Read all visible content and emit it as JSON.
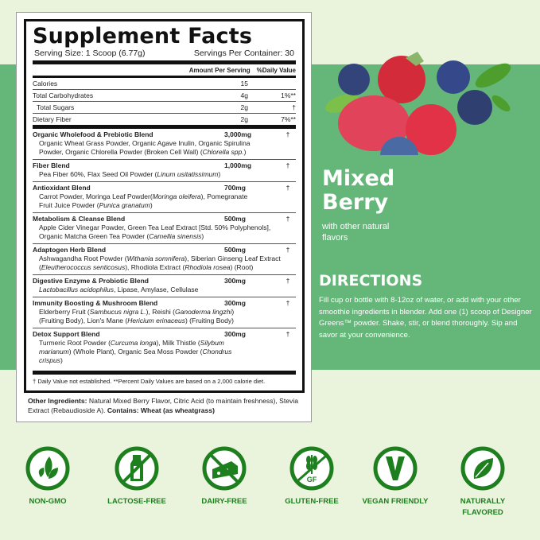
{
  "label": {
    "title": "Supplement Facts",
    "serving_size": "Serving Size: 1 Scoop (6.77g)",
    "servings_per_container": "Servings Per Container: 30",
    "col_amount": "Amount Per Serving",
    "col_dv": "%Daily Value",
    "nutrients": [
      {
        "name": "Calories",
        "amount": "15",
        "dv": ""
      },
      {
        "name": "Total Carbohydrates",
        "amount": "4g",
        "dv": "1%**"
      },
      {
        "name": "Total Sugars",
        "amount": "2g",
        "dv": "†"
      },
      {
        "name": "Dietary Fiber",
        "amount": "2g",
        "dv": "7%**"
      }
    ],
    "blends": [
      {
        "name": "Organic Wholefood & Prebiotic Blend",
        "amount": "3,000mg",
        "dv": "†",
        "ingredients": [
          {
            "t": "Organic Wheat Grass Powder, Organic Agave Inulin, Organic Spirulina Powder, Organic Chlorella Powder (Broken Cell Wall) ("
          },
          {
            "t": "Chlorella spp.",
            "i": true
          },
          {
            "t": ")"
          }
        ]
      },
      {
        "name": "Fiber Blend",
        "amount": "1,000mg",
        "dv": "†",
        "ingredients": [
          {
            "t": "Pea Fiber 60%, Flax Seed Oil Powder ("
          },
          {
            "t": "Linum usitatissimum",
            "i": true
          },
          {
            "t": ")"
          }
        ]
      },
      {
        "name": "Antioxidant Blend",
        "amount": "700mg",
        "dv": "†",
        "ingredients": [
          {
            "t": "Carrot Powder, Moringa Leaf Powder("
          },
          {
            "t": "Moringa oleifera",
            "i": true
          },
          {
            "t": "), Pomegranate Fruit Juice Powder ("
          },
          {
            "t": "Punica granatum",
            "i": true
          },
          {
            "t": ")"
          }
        ]
      },
      {
        "name": "Metabolism & Cleanse Blend",
        "amount": "500mg",
        "dv": "†",
        "ingredients": [
          {
            "t": "Apple Cider Vinegar Powder, Green Tea Leaf Extract [Std. 50% Polyphenols], Organic Matcha Green Tea Powder ("
          },
          {
            "t": "Camellia sinensis",
            "i": true
          },
          {
            "t": ")"
          }
        ]
      },
      {
        "name": "Adaptogen Herb Blend",
        "amount": "500mg",
        "dv": "†",
        "ingredients": [
          {
            "t": "Ashwagandha Root Powder ("
          },
          {
            "t": "Withania somnifera",
            "i": true
          },
          {
            "t": "), Siberian Ginseng Leaf Extract ("
          },
          {
            "t": "Eleutherococcus senticosus",
            "i": true
          },
          {
            "t": "), Rhodiola Extract ("
          },
          {
            "t": "Rhodiola rosea",
            "i": true
          },
          {
            "t": ") (Root)"
          }
        ]
      },
      {
        "name": "Digestive Enzyme & Probiotic Blend",
        "amount": "300mg",
        "dv": "†",
        "ingredients": [
          {
            "t": "Lactobacillus acidophilus",
            "i": true
          },
          {
            "t": ", Lipase, Amylase, Cellulase"
          }
        ]
      },
      {
        "name": "Immunity Boosting & Mushroom Blend",
        "amount": "300mg",
        "dv": "†",
        "ingredients": [
          {
            "t": "Elderberry Fruit ("
          },
          {
            "t": "Sambucus nigra L.",
            "i": true
          },
          {
            "t": "), Reishi ("
          },
          {
            "t": "Ganoderma lingzhi",
            "i": true
          },
          {
            "t": ") (Fruiting Body), Lion's Mane ("
          },
          {
            "t": "Hericium erinaceus",
            "i": true
          },
          {
            "t": ") (Fruiting Body)"
          }
        ]
      },
      {
        "name": "Detox Support Blend",
        "amount": "300mg",
        "dv": "†",
        "ingredients": [
          {
            "t": "Turmeric Root Powder ("
          },
          {
            "t": "Curcuma longa",
            "i": true
          },
          {
            "t": "), Milk Thistle ("
          },
          {
            "t": "Silybum marianum",
            "i": true
          },
          {
            "t": ") (Whole Plant), Organic Sea Moss Powder ("
          },
          {
            "t": "Chondrus crispus",
            "i": true
          },
          {
            "t": ")"
          }
        ]
      }
    ],
    "footnote": "† Daily Value not established. **Percent Daily Values are based on a 2,000 calorie diet.",
    "other_label": "Other Ingredients:",
    "other_text": " Natural Mixed Berry Flavor, Citric Acid (to maintain freshness), Stevia Extract (Rebaudioside A). ",
    "contains": "Contains: Wheat (as wheatgrass)"
  },
  "flavor": {
    "name": "Mixed Berry",
    "sub": "with other natural flavors"
  },
  "directions": {
    "title": "DIRECTIONS",
    "text": "Fill cup or bottle with 8-12oz of water, or add with your other smoothie ingredients in  blender. Add one (1) scoop of Designer Greens™ powder. Shake, stir, or blend thoroughly.  Sip and savor at your convenience."
  },
  "badges": [
    {
      "label": "NON-GMO",
      "icon": "sprout-icon"
    },
    {
      "label": "LACTOSE-FREE",
      "icon": "milk-bottle-crossed-icon"
    },
    {
      "label": "DAIRY-FREE",
      "icon": "cheese-crossed-icon"
    },
    {
      "label": "GLUTEN-FREE",
      "icon": "wheat-gf-crossed-icon",
      "icon_text": "GF"
    },
    {
      "label": "VEGAN FRIENDLY",
      "icon": "v-icon"
    },
    {
      "label": "NATURALLY FLAVORED",
      "icon": "leaf-icon"
    }
  ],
  "colors": {
    "band": "#64b679",
    "background": "#eaf3dc",
    "badge_green": "#1e7f1e"
  }
}
